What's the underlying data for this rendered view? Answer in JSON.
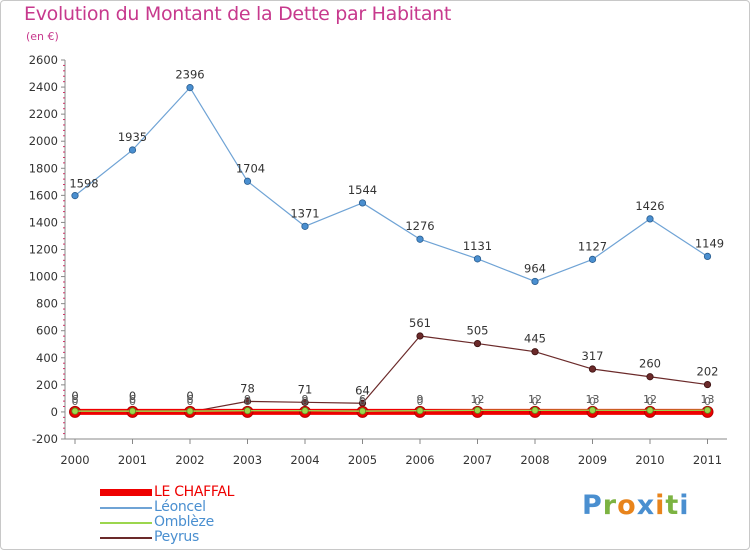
{
  "header": {
    "title": "Evolution du Montant de la Dette par Habitant",
    "subtitle": "(en €)"
  },
  "brand": {
    "logo": [
      "P",
      "r",
      "o",
      "x",
      "i",
      "t",
      "i"
    ]
  },
  "colors": {
    "title": "#c7398d",
    "logo": [
      "#4a8fd0",
      "#7cb342",
      "#e8841c",
      "#4a8fd0",
      "#e8841c",
      "#7cb342",
      "#4a8fd0"
    ]
  },
  "chart_data": {
    "type": "line",
    "title": "Evolution du Montant de la Dette par Habitant",
    "subtitle": "(en €)",
    "x": [
      "2000",
      "2001",
      "2002",
      "2003",
      "2004",
      "2005",
      "2006",
      "2007",
      "2008",
      "2009",
      "2010",
      "2011"
    ],
    "ylim": [
      -200,
      2600
    ],
    "yticks": [
      -200,
      0,
      200,
      400,
      600,
      800,
      1000,
      1200,
      1400,
      1600,
      1800,
      2000,
      2200,
      2400,
      2600
    ],
    "grid": false,
    "legend_position": "bottom-left",
    "series": [
      {
        "name": "LE CHAFFAL",
        "color": "#ee0000",
        "style": "thick",
        "values": [
          0,
          0,
          0,
          0,
          0,
          0,
          0,
          0,
          0,
          0,
          0,
          0
        ]
      },
      {
        "name": "Léoncel",
        "color": "#6fa3d5",
        "style": "normal",
        "values": [
          1598,
          1935,
          2396,
          1704,
          1371,
          1544,
          1276,
          1131,
          964,
          1127,
          1426,
          1149
        ]
      },
      {
        "name": "Omblèze",
        "color": "#9cd64d",
        "style": "normal",
        "values": [
          6,
          6,
          6,
          9,
          9,
          6,
          9,
          12,
          12,
          13,
          12,
          13
        ]
      },
      {
        "name": "Peyrus",
        "color": "#6b2a2a",
        "style": "normal",
        "values": [
          0,
          0,
          0,
          78,
          71,
          64,
          561,
          505,
          445,
          317,
          260,
          202
        ]
      }
    ],
    "data_labels": [
      {
        "series": "Léoncel",
        "values": [
          "1598",
          "1935",
          "2396",
          "1704",
          "1371",
          "1544",
          "1276",
          "1131",
          "964",
          "1127",
          "1426",
          "1149"
        ]
      },
      {
        "series": "Peyrus",
        "values": [
          "0",
          "0",
          "0",
          "78",
          "71",
          "64",
          "561",
          "505",
          "445",
          "317",
          "260",
          "202"
        ]
      },
      {
        "series": "Omblèze",
        "values": [
          "6",
          "6",
          "6",
          "9",
          "9",
          "6",
          "9",
          "12",
          "12",
          "13",
          "12",
          "13"
        ]
      },
      {
        "series": "LE CHAFFAL",
        "values": [
          "0",
          "0",
          "0",
          "0",
          "0",
          "0",
          "0",
          "0",
          "0",
          "0",
          "0",
          "0"
        ]
      }
    ]
  }
}
